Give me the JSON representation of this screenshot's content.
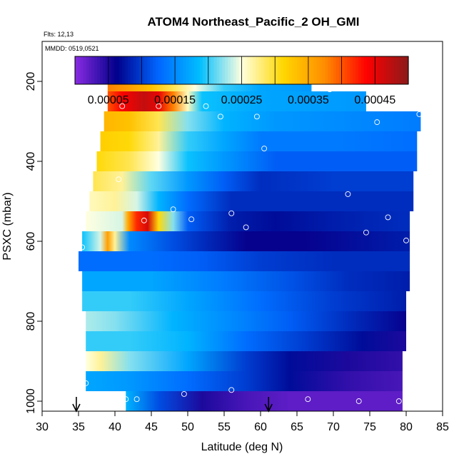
{
  "chart_data": {
    "type": "heatmap",
    "title": "ATOM4 Northeast_Pacific_2 OH_GMI",
    "flights_label": "Flts: 12,13",
    "date_label": "MMDD: 0519,0521",
    "xlabel": "Latitude (deg N)",
    "ylabel": "PSXC (mbar)",
    "xlim": [
      30,
      85
    ],
    "ylim": [
      1025,
      100
    ],
    "x_ticks": [
      30,
      35,
      40,
      45,
      50,
      55,
      60,
      65,
      70,
      75,
      80,
      85
    ],
    "y_ticks": [
      200,
      400,
      600,
      800,
      1000
    ],
    "colorbar": {
      "range": [
        0,
        0.0005
      ],
      "tick_values": [
        5e-05,
        0.00015,
        0.00025,
        0.00035,
        0.00045
      ],
      "tick_labels": [
        "0.00005",
        "0.00015",
        "0.00025",
        "0.00035",
        "0.00045"
      ],
      "colors": [
        "#8a2be2",
        "#00008b",
        "#0066ff",
        "#00bfff",
        "#ffffe0",
        "#ffd700",
        "#ff8c00",
        "#ff0000",
        "#8b1a1a"
      ]
    },
    "arrows_latitude": [
      34.7,
      61.1
    ],
    "rows": [
      {
        "p": 200,
        "x0": 39.0,
        "x1": 67.0,
        "stops": [
          [
            39,
            0.00038
          ],
          [
            42,
            0.00036
          ],
          [
            45,
            0.00033
          ],
          [
            48,
            0.00029
          ],
          [
            51,
            0.00025
          ],
          [
            55,
            0.0002
          ],
          [
            60,
            0.00017
          ],
          [
            67,
            0.00016
          ]
        ]
      },
      {
        "p": 250,
        "x0": 39.0,
        "x1": 74.5,
        "stops": [
          [
            39,
            0.0004
          ],
          [
            41,
            0.00044
          ],
          [
            44,
            0.00047
          ],
          [
            46,
            0.00045
          ],
          [
            48,
            0.00038
          ],
          [
            50,
            0.00026
          ],
          [
            52,
            0.00019
          ],
          [
            60,
            0.00017
          ],
          [
            74.5,
            0.00016
          ]
        ]
      },
      {
        "p": 300,
        "x0": 38.5,
        "x1": 82.0,
        "stops": [
          [
            38.5,
            0.00034
          ],
          [
            42,
            0.00033
          ],
          [
            46,
            0.00029
          ],
          [
            50,
            0.00022
          ],
          [
            55,
            0.00018
          ],
          [
            62,
            0.00016
          ],
          [
            72,
            0.00015
          ],
          [
            82,
            0.00014
          ]
        ]
      },
      {
        "p": 350,
        "x0": 38.0,
        "x1": 81.5,
        "stops": [
          [
            38,
            0.00032
          ],
          [
            42,
            0.00031
          ],
          [
            46,
            0.00027
          ],
          [
            50,
            0.0002
          ],
          [
            55,
            0.00017
          ],
          [
            60,
            0.00014
          ],
          [
            70,
            0.00014
          ],
          [
            81.5,
            0.00013
          ]
        ]
      },
      {
        "p": 400,
        "x0": 37.5,
        "x1": 81.5,
        "stops": [
          [
            37.5,
            0.00031
          ],
          [
            42,
            0.00029
          ],
          [
            46,
            0.00025
          ],
          [
            50,
            0.00019
          ],
          [
            55,
            0.00016
          ],
          [
            62,
            0.00012
          ],
          [
            70,
            0.00012
          ],
          [
            81.5,
            0.00012
          ]
        ]
      },
      {
        "p": 450,
        "x0": 37.0,
        "x1": 81.0,
        "stops": [
          [
            37,
            0.00029
          ],
          [
            41,
            0.00027
          ],
          [
            45,
            0.00021
          ],
          [
            50,
            0.00016
          ],
          [
            55,
            0.00012
          ],
          [
            60,
            9e-05
          ],
          [
            70,
            0.0001
          ],
          [
            81,
            0.0001
          ]
        ]
      },
      {
        "p": 500,
        "x0": 36.5,
        "x1": 81.0,
        "stops": [
          [
            36.5,
            0.00026
          ],
          [
            40,
            0.00027
          ],
          [
            43,
            0.00024
          ],
          [
            46,
            0.00018
          ],
          [
            50,
            0.00013
          ],
          [
            56,
            9e-05
          ],
          [
            62,
            9e-05
          ],
          [
            70,
            9e-05
          ],
          [
            81,
            9e-05
          ]
        ]
      },
      {
        "p": 550,
        "x0": 36.0,
        "x1": 80.5,
        "stops": [
          [
            36,
            0.00025
          ],
          [
            41,
            0.00024
          ],
          [
            41.8,
            0.00035
          ],
          [
            43,
            0.00042
          ],
          [
            44.5,
            0.00046
          ],
          [
            46,
            0.00031
          ],
          [
            48,
            0.00022
          ],
          [
            50,
            0.00012
          ],
          [
            56,
            8e-05
          ],
          [
            62,
            7e-05
          ],
          [
            70,
            8e-05
          ],
          [
            80.5,
            9e-05
          ]
        ]
      },
      {
        "p": 600,
        "x0": 35.5,
        "x1": 80.5,
        "stops": [
          [
            35.5,
            0.00019
          ],
          [
            38,
            0.00024
          ],
          [
            39,
            0.00036
          ],
          [
            40,
            0.00027
          ],
          [
            42,
            0.00015
          ],
          [
            48,
            0.00011
          ],
          [
            52,
            9e-05
          ],
          [
            58,
            6e-05
          ],
          [
            66,
            6e-05
          ],
          [
            80.5,
            8e-05
          ]
        ]
      },
      {
        "p": 650,
        "x0": 35.0,
        "x1": 80.5,
        "stops": [
          [
            35,
            0.00013
          ],
          [
            45,
            0.00013
          ],
          [
            52,
            0.00012
          ],
          [
            60,
            0.0001
          ],
          [
            70,
            9e-05
          ],
          [
            80.5,
            9e-05
          ]
        ]
      },
      {
        "p": 700,
        "x0": 35.5,
        "x1": 80.5,
        "stops": [
          [
            35.5,
            0.00017
          ],
          [
            45,
            0.00017
          ],
          [
            55,
            0.00014
          ],
          [
            65,
            0.00011
          ],
          [
            72,
            9e-05
          ],
          [
            80.5,
            8e-05
          ]
        ]
      },
      {
        "p": 750,
        "x0": 35.5,
        "x1": 80.0,
        "stops": [
          [
            35.5,
            0.0002
          ],
          [
            42,
            0.0002
          ],
          [
            50,
            0.00017
          ],
          [
            60,
            0.00013
          ],
          [
            70,
            0.0001
          ],
          [
            80,
            8e-05
          ]
        ]
      },
      {
        "p": 800,
        "x0": 36.0,
        "x1": 80.0,
        "stops": [
          [
            36,
            0.00023
          ],
          [
            40,
            0.00022
          ],
          [
            48,
            0.00018
          ],
          [
            56,
            0.00015
          ],
          [
            64,
            0.00012
          ],
          [
            72,
            9e-05
          ],
          [
            80,
            6e-05
          ]
        ]
      },
      {
        "p": 850,
        "x0": 36.0,
        "x1": 80.0,
        "stops": [
          [
            36,
            0.0002
          ],
          [
            42,
            0.0002
          ],
          [
            50,
            0.00018
          ],
          [
            58,
            0.00013
          ],
          [
            66,
            0.0001
          ],
          [
            74,
            7e-05
          ],
          [
            80,
            5e-05
          ]
        ]
      },
      {
        "p": 900,
        "x0": 36.0,
        "x1": 79.5,
        "stops": [
          [
            36,
            0.00025
          ],
          [
            38,
            0.00027
          ],
          [
            42,
            0.00022
          ],
          [
            50,
            0.00017
          ],
          [
            58,
            0.0001
          ],
          [
            64,
            7e-05
          ],
          [
            72,
            5e-05
          ],
          [
            79.5,
            4e-05
          ]
        ]
      },
      {
        "p": 950,
        "x0": 36.0,
        "x1": 79.5,
        "stops": [
          [
            36,
            0.00017
          ],
          [
            42,
            0.00016
          ],
          [
            50,
            0.00013
          ],
          [
            58,
            0.0001
          ],
          [
            64,
            7e-05
          ],
          [
            72,
            4e-05
          ],
          [
            79.5,
            3e-05
          ]
        ]
      },
      {
        "p": 1000,
        "x0": 41.5,
        "x1": 79.5,
        "stops": [
          [
            41.5,
            0.00018
          ],
          [
            46,
            0.00011
          ],
          [
            52,
            5e-05
          ],
          [
            58,
            3e-05
          ],
          [
            64,
            2e-05
          ],
          [
            72,
            2e-05
          ],
          [
            79.5,
            2e-05
          ]
        ]
      }
    ],
    "points": [
      [
        39.5,
        195
      ],
      [
        65.5,
        190
      ],
      [
        67.0,
        188
      ],
      [
        69.5,
        220
      ],
      [
        41.0,
        262
      ],
      [
        46.0,
        262
      ],
      [
        52.5,
        262
      ],
      [
        54.5,
        288
      ],
      [
        59.5,
        288
      ],
      [
        76.0,
        302
      ],
      [
        81.8,
        282
      ],
      [
        60.5,
        368
      ],
      [
        40.5,
        445
      ],
      [
        72.0,
        482
      ],
      [
        48.0,
        520
      ],
      [
        44.0,
        548
      ],
      [
        50.5,
        545
      ],
      [
        56.0,
        530
      ],
      [
        58.0,
        565
      ],
      [
        77.5,
        540
      ],
      [
        74.5,
        578
      ],
      [
        80.0,
        598
      ],
      [
        35.5,
        615
      ],
      [
        36.0,
        955
      ],
      [
        56.0,
        972
      ],
      [
        49.5,
        982
      ],
      [
        41.5,
        995
      ],
      [
        43.0,
        995
      ],
      [
        66.5,
        995
      ],
      [
        73.5,
        1000
      ],
      [
        79.0,
        1000
      ]
    ]
  }
}
